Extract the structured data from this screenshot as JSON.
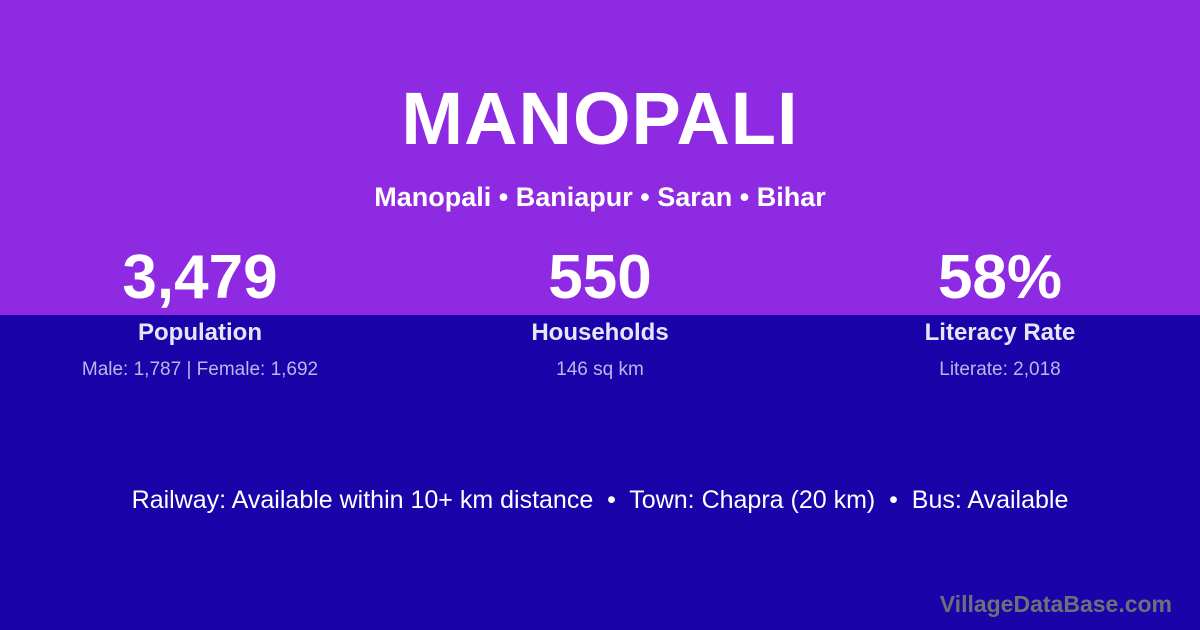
{
  "header": {
    "title": "MANOPALI",
    "breadcrumb": {
      "items": [
        "Manopali",
        "Baniapur",
        "Saran",
        "Bihar"
      ],
      "separator": " • "
    }
  },
  "stats": [
    {
      "value": "3,479",
      "label": "Population",
      "detail": "Male: 1,787 | Female: 1,692"
    },
    {
      "value": "550",
      "label": "Households",
      "detail": "146 sq km"
    },
    {
      "value": "58%",
      "label": "Literacy Rate",
      "detail": "Literate: 2,018"
    }
  ],
  "facilities": {
    "items": [
      "Railway: Available within 10+ km distance",
      "Town: Chapra (20 km)",
      "Bus: Available"
    ],
    "separator": "  •  "
  },
  "watermark": "VillageDataBase.com",
  "colors": {
    "bg_top": "#8E2BE2",
    "bg_bottom": "#1B03AA",
    "text_primary": "#FFFFFF",
    "text_label": "#E9E5F9",
    "text_detail": "#BEB5E8",
    "watermark": "#6F6F7A"
  }
}
